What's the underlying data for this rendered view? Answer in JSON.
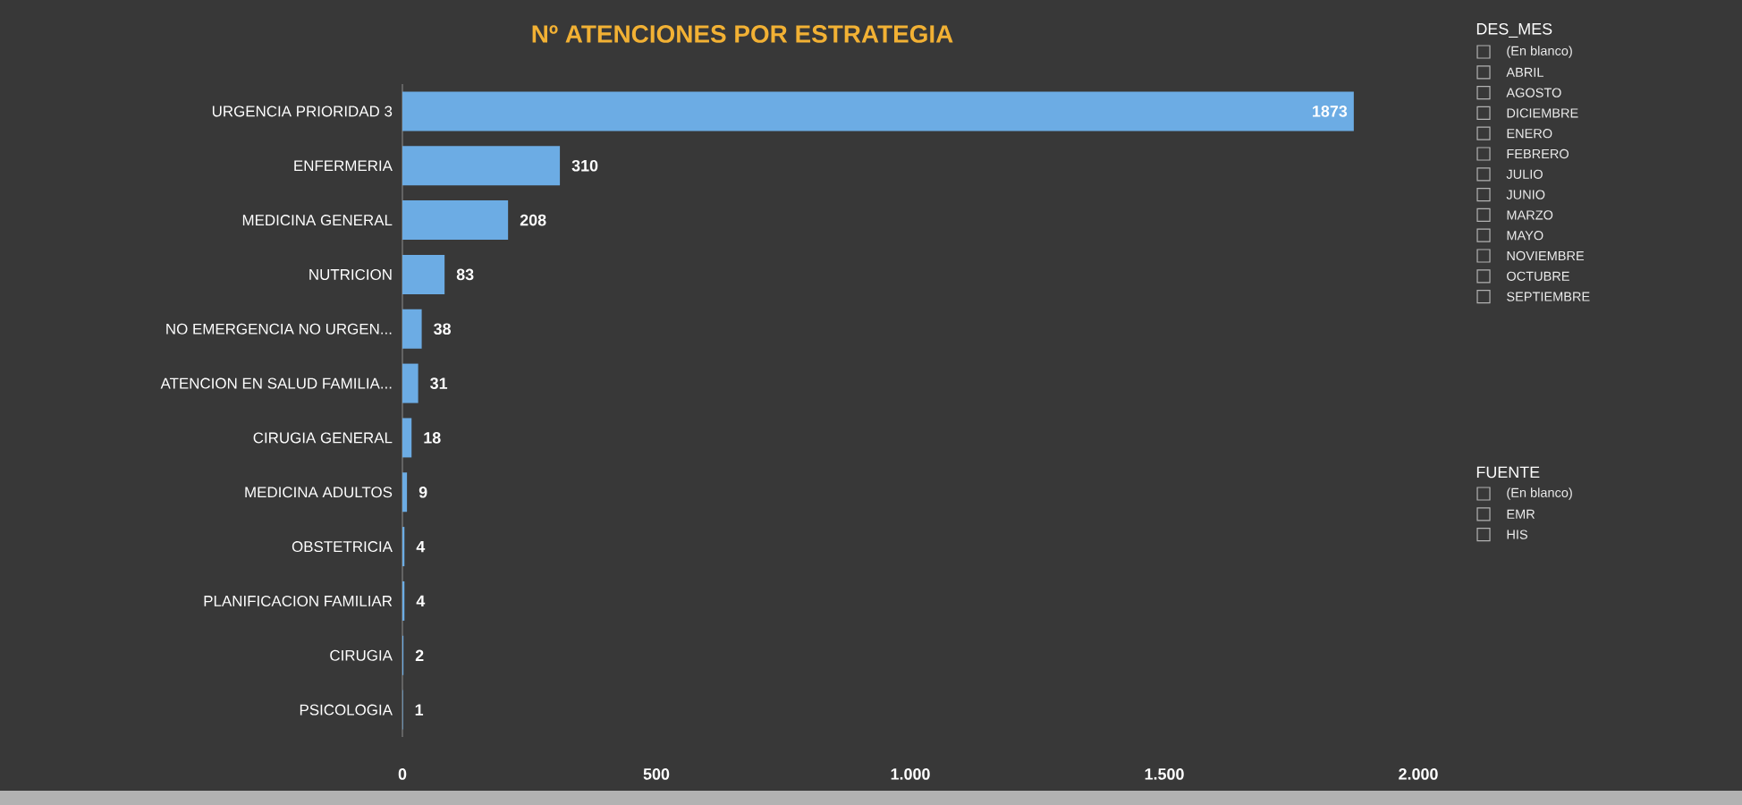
{
  "chart_data": [
    {
      "type": "bar",
      "orientation": "horizontal",
      "title": "Nº ATENCIONES POR ESTRATEGIA",
      "categories": [
        "URGENCIA PRIORIDAD 3",
        "ENFERMERIA",
        "MEDICINA GENERAL",
        "NUTRICION",
        "NO EMERGENCIA NO URGEN...",
        "ATENCION EN SALUD FAMILIA...",
        "CIRUGIA GENERAL",
        "MEDICINA ADULTOS",
        "OBSTETRICIA",
        "PLANIFICACION FAMILIAR",
        "CIRUGIA",
        "PSICOLOGIA"
      ],
      "values": [
        1873,
        310,
        208,
        83,
        38,
        31,
        18,
        9,
        4,
        4,
        2,
        1
      ],
      "color": "#6cace4",
      "data_labels": true,
      "xlim": [
        0,
        2000
      ],
      "xticks": [
        0,
        500,
        {
          "value": 1000,
          "label": "1.000"
        },
        {
          "value": 1500,
          "label": "1.500"
        },
        {
          "value": 2000,
          "label": "2.000"
        }
      ],
      "grid": false
    },
    {
      "type": "other",
      "title": "DES_MES",
      "annotations": [
        "(En blanco)",
        "ABRIL",
        "AGOSTO",
        "DICIEMBRE",
        "ENERO",
        "FEBRERO",
        "JULIO",
        "JUNIO",
        "MARZO",
        "MAYO",
        "NOVIEMBRE",
        "OCTUBRE",
        "SEPTIEMBRE"
      ]
    },
    {
      "type": "other",
      "title": "FUENTE",
      "annotations": [
        "(En blanco)",
        "EMR",
        "HIS"
      ]
    }
  ]
}
